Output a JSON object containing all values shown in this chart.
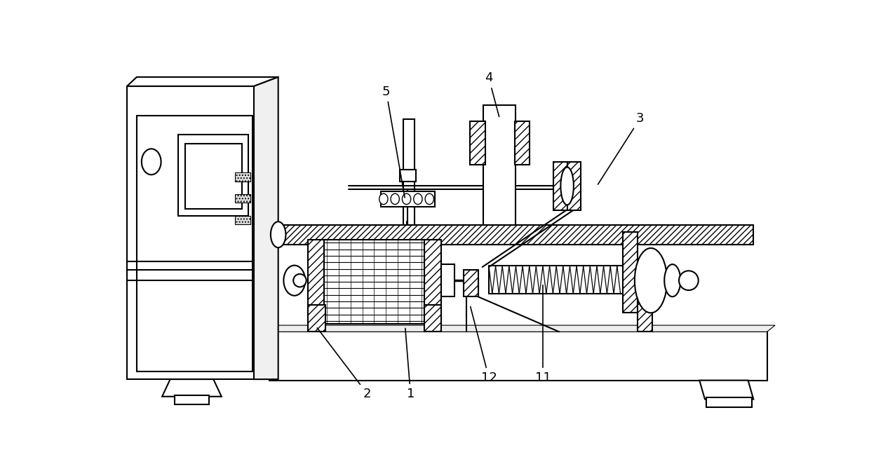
{
  "bg_color": "#ffffff",
  "line_color": "#000000",
  "fig_width": 12.39,
  "fig_height": 6.72,
  "label_fontsize": 13
}
